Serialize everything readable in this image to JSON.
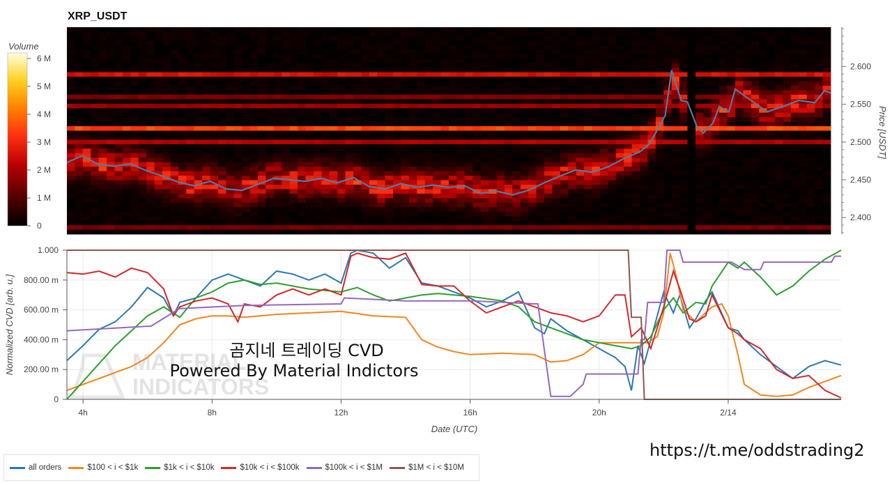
{
  "chart_data": [
    {
      "type": "heatmap",
      "title": "XRP_USDT",
      "ylabel": "Price [USDT]",
      "ylim": [
        2.378,
        2.652
      ],
      "y_ticks": [
        "2.400",
        "2.450",
        "2.500",
        "2.550",
        "2.600"
      ],
      "y_tick_values": [
        2.4,
        2.45,
        2.5,
        2.55,
        2.6
      ],
      "colorbar": {
        "title": "Volume",
        "ticks": [
          "0",
          "1 M",
          "2 M",
          "3 M",
          "4 M",
          "5 M",
          "6 M"
        ],
        "tick_values": [
          0,
          1,
          2,
          3,
          4,
          5,
          6
        ],
        "max": 6.2
      },
      "price_line_color": "#4a7fa8",
      "price_series": {
        "x_hours": [
          3.5,
          4.0,
          4.5,
          5.0,
          5.5,
          6.0,
          6.5,
          7.0,
          7.5,
          8.0,
          8.5,
          9.0,
          9.5,
          10.0,
          10.5,
          11.0,
          11.5,
          12.0,
          12.5,
          13.0,
          13.5,
          14.0,
          14.5,
          15.0,
          15.5,
          16.0,
          16.5,
          17.0,
          17.5,
          18.0,
          18.5,
          19.0,
          19.5,
          20.0,
          20.5,
          21.0,
          21.5,
          21.8,
          22.0,
          22.3,
          22.5,
          22.8,
          23.0,
          23.3,
          23.5,
          23.8,
          24.0,
          24.3,
          24.5,
          25.0,
          25.5,
          26.0,
          26.5,
          27.0,
          27.3,
          27.5
        ],
        "price": [
          2.473,
          2.482,
          2.47,
          2.468,
          2.471,
          2.462,
          2.455,
          2.447,
          2.442,
          2.448,
          2.438,
          2.436,
          2.444,
          2.452,
          2.45,
          2.448,
          2.452,
          2.446,
          2.453,
          2.441,
          2.438,
          2.445,
          2.44,
          2.443,
          2.44,
          2.442,
          2.432,
          2.435,
          2.43,
          2.436,
          2.446,
          2.455,
          2.463,
          2.46,
          2.467,
          2.478,
          2.487,
          2.497,
          2.512,
          2.535,
          2.595,
          2.555,
          2.553,
          2.52,
          2.512,
          2.525,
          2.547,
          2.54,
          2.57,
          2.555,
          2.54,
          2.547,
          2.555,
          2.552,
          2.568,
          2.565
        ]
      },
      "notable_bands": [
        {
          "price": 2.592,
          "level": 2.7
        },
        {
          "price": 2.562,
          "level": 1.6
        },
        {
          "price": 2.548,
          "level": 1.9
        },
        {
          "price": 2.519,
          "level": 3.6
        },
        {
          "price": 2.501,
          "level": 2.2
        },
        {
          "price": 2.388,
          "level": 1.5
        }
      ],
      "dark_column_hour": 23.2
    },
    {
      "type": "line",
      "xlabel": "Date (UTC)",
      "ylabel": "Normalized CVD [arb. u.]",
      "ylim": [
        0,
        1
      ],
      "xlim": [
        3.5,
        27.5
      ],
      "x_ticks": [
        "4h",
        "8h",
        "12h",
        "16h",
        "20h",
        "2/14"
      ],
      "x_tick_values": [
        4,
        8,
        12,
        16,
        20,
        24
      ],
      "y_ticks": [
        "0",
        "200.00 m",
        "400.00 m",
        "600.00 m",
        "800.00 m",
        "1.000"
      ],
      "y_tick_values": [
        0,
        0.2,
        0.4,
        0.6,
        0.8,
        1.0
      ],
      "series": [
        {
          "name": "all orders",
          "color": "#2878b4",
          "x": [
            3.5,
            4.0,
            4.5,
            5.0,
            5.5,
            6.0,
            6.5,
            6.8,
            7.0,
            7.5,
            8.0,
            8.5,
            9.0,
            9.5,
            10.0,
            10.5,
            11.0,
            11.5,
            12.0,
            12.3,
            12.5,
            13.0,
            13.5,
            14.0,
            14.5,
            15.0,
            15.5,
            16.0,
            16.5,
            17.0,
            17.5,
            18.0,
            18.3,
            18.5,
            19.0,
            19.5,
            20.0,
            20.5,
            20.8,
            21.0,
            21.2,
            21.4,
            21.6,
            21.8,
            22.0,
            22.3,
            22.5,
            22.8,
            23.0,
            23.3,
            23.5,
            24.0,
            24.3,
            24.5,
            25.0,
            25.5,
            26.0,
            26.5,
            27.0,
            27.5
          ],
          "values": [
            0.26,
            0.36,
            0.47,
            0.52,
            0.62,
            0.75,
            0.68,
            0.56,
            0.65,
            0.68,
            0.8,
            0.84,
            0.8,
            0.76,
            0.86,
            0.84,
            0.8,
            0.84,
            0.78,
            0.98,
            1.0,
            0.98,
            0.88,
            0.95,
            0.78,
            0.76,
            0.72,
            0.68,
            0.62,
            0.66,
            0.72,
            0.48,
            0.44,
            0.54,
            0.46,
            0.4,
            0.34,
            0.28,
            0.22,
            0.06,
            0.36,
            0.24,
            0.4,
            0.56,
            0.72,
            0.58,
            0.7,
            0.48,
            0.54,
            0.66,
            0.72,
            0.48,
            0.46,
            0.4,
            0.3,
            0.22,
            0.14,
            0.22,
            0.26,
            0.23
          ]
        },
        {
          "name": "$100 < i < $1k",
          "color": "#f0861c",
          "x": [
            3.5,
            4.0,
            4.5,
            5.0,
            5.5,
            6.0,
            6.5,
            7.0,
            7.5,
            8.0,
            8.5,
            9.0,
            10.0,
            11.0,
            12.0,
            13.0,
            14.0,
            14.5,
            15.0,
            15.5,
            16.0,
            17.0,
            18.0,
            18.5,
            19.0,
            19.5,
            20.0,
            20.5,
            21.0,
            21.5,
            21.8,
            22.0,
            22.2,
            22.4,
            22.6,
            23.0,
            23.5,
            23.8,
            24.0,
            24.3,
            24.5,
            25.0,
            25.5,
            26.0,
            26.5,
            27.0,
            27.5
          ],
          "values": [
            0.06,
            0.1,
            0.14,
            0.18,
            0.22,
            0.28,
            0.38,
            0.5,
            0.54,
            0.56,
            0.56,
            0.55,
            0.57,
            0.58,
            0.59,
            0.56,
            0.55,
            0.4,
            0.35,
            0.32,
            0.3,
            0.31,
            0.3,
            0.25,
            0.26,
            0.3,
            0.38,
            0.38,
            0.38,
            0.38,
            0.42,
            0.58,
            0.98,
            0.82,
            0.6,
            0.52,
            0.62,
            0.64,
            0.56,
            0.3,
            0.1,
            0.03,
            0.02,
            0.03,
            0.08,
            0.12,
            0.16
          ]
        },
        {
          "name": "$1k < i < $10k",
          "color": "#2b9f2b",
          "x": [
            3.5,
            4.0,
            4.5,
            5.0,
            5.5,
            6.0,
            6.5,
            7.0,
            7.5,
            8.0,
            8.5,
            9.0,
            9.5,
            10.0,
            11.0,
            12.0,
            12.5,
            13.0,
            13.5,
            14.0,
            14.5,
            15.0,
            16.0,
            17.0,
            17.5,
            18.0,
            18.5,
            19.0,
            19.5,
            20.0,
            20.5,
            21.0,
            21.3,
            21.6,
            22.0,
            22.3,
            22.6,
            23.0,
            23.3,
            23.5,
            24.0,
            24.3,
            24.5,
            25.0,
            25.5,
            26.0,
            26.5,
            27.0,
            27.5
          ],
          "values": [
            0.0,
            0.12,
            0.24,
            0.36,
            0.46,
            0.56,
            0.62,
            0.55,
            0.68,
            0.72,
            0.78,
            0.8,
            0.77,
            0.78,
            0.74,
            0.72,
            0.75,
            0.7,
            0.66,
            0.68,
            0.7,
            0.71,
            0.69,
            0.66,
            0.62,
            0.52,
            0.48,
            0.44,
            0.4,
            0.38,
            0.36,
            0.34,
            0.36,
            0.42,
            0.6,
            0.68,
            0.58,
            0.65,
            0.64,
            0.76,
            0.92,
            0.88,
            0.92,
            0.82,
            0.7,
            0.76,
            0.86,
            0.94,
            1.0
          ]
        },
        {
          "name": "$10k < i < $100k",
          "color": "#d42728",
          "x": [
            3.5,
            4.0,
            4.5,
            5.0,
            5.5,
            6.0,
            6.5,
            6.8,
            7.0,
            7.5,
            8.0,
            8.5,
            8.8,
            9.0,
            9.5,
            10.0,
            10.5,
            11.0,
            11.5,
            12.0,
            12.3,
            12.5,
            13.0,
            13.5,
            14.0,
            14.5,
            15.0,
            15.5,
            16.0,
            16.5,
            17.0,
            17.5,
            18.0,
            18.5,
            19.0,
            19.5,
            20.0,
            20.5,
            20.8,
            21.0,
            21.3,
            21.6,
            22.0,
            22.3,
            22.5,
            22.8,
            23.0,
            23.3,
            23.5,
            24.0,
            24.3,
            24.5,
            25.0,
            25.5,
            26.0,
            26.5,
            27.0,
            27.5
          ],
          "values": [
            0.85,
            0.84,
            0.86,
            0.82,
            0.88,
            0.85,
            0.74,
            0.56,
            0.62,
            0.66,
            0.68,
            0.64,
            0.52,
            0.64,
            0.62,
            0.7,
            0.74,
            0.7,
            0.74,
            0.7,
            0.96,
            0.98,
            0.95,
            0.94,
            0.98,
            0.77,
            0.76,
            0.76,
            0.66,
            0.58,
            0.62,
            0.66,
            0.62,
            0.58,
            0.56,
            0.52,
            0.56,
            0.7,
            0.7,
            0.42,
            0.48,
            0.34,
            0.62,
            0.86,
            0.74,
            0.54,
            0.52,
            0.56,
            0.7,
            0.48,
            0.44,
            0.4,
            0.34,
            0.2,
            0.14,
            0.16,
            0.06,
            0.01
          ]
        },
        {
          "name": "$100k < i < $1M",
          "color": "#9467bd",
          "x": [
            3.5,
            6.0,
            6.1,
            7.0,
            7.1,
            9.0,
            9.1,
            12.0,
            12.1,
            14.0,
            14.1,
            16.0,
            16.1,
            18.0,
            18.1,
            18.5,
            18.6,
            19.0,
            19.1,
            19.5,
            19.6,
            21.2,
            21.3,
            21.4,
            21.5,
            21.6,
            21.7,
            22.0,
            22.1,
            22.5,
            22.6,
            24.0,
            24.1,
            24.5,
            24.6,
            25.0,
            25.1,
            27.2,
            27.3,
            27.5
          ],
          "values": [
            0.46,
            0.49,
            0.49,
            0.61,
            0.61,
            0.63,
            0.63,
            0.64,
            0.68,
            0.66,
            0.66,
            0.66,
            0.66,
            0.64,
            0.64,
            0.02,
            0.02,
            0.02,
            0.02,
            0.1,
            0.17,
            0.17,
            0.4,
            0.4,
            0.65,
            0.65,
            0.65,
            0.65,
            1.0,
            1.0,
            0.92,
            0.92,
            0.92,
            0.87,
            0.87,
            0.87,
            0.92,
            0.92,
            0.96,
            0.96
          ]
        },
        {
          "name": "$1M < i < $10M",
          "color": "#8c564b",
          "x": [
            3.5,
            20.9,
            21.0,
            21.3,
            21.4,
            21.45,
            21.5,
            27.5
          ],
          "values": [
            1.0,
            1.0,
            0.55,
            0.55,
            0.0,
            0.0,
            0.0,
            0.0
          ]
        }
      ]
    }
  ],
  "overlay_text": {
    "line1": "곰지네 트레이딩 CVD",
    "line2": "Powered By Material Indictors",
    "url": "https://t.me/oddstrading2",
    "logo_text_1": "MATERIAL",
    "logo_text_2": "INDICATORS"
  },
  "colors": {
    "frame": "#dddddd",
    "grid": "#e8e8e8",
    "heat_bg": "#1a0000"
  }
}
